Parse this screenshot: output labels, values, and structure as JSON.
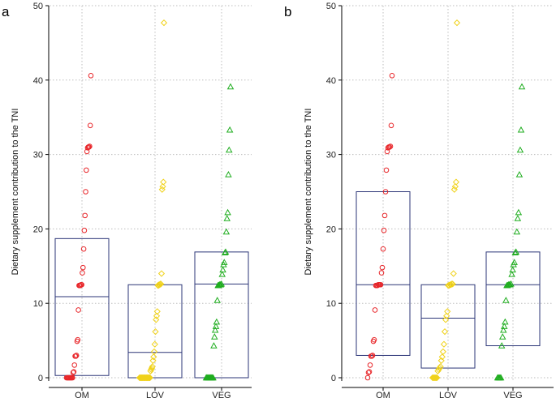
{
  "chart_data": [
    {
      "type": "scatter",
      "panel_label": "a",
      "ylabel": "Dietary supplement contribution to the TNI",
      "xlabel": "",
      "ylim": [
        0,
        50
      ],
      "yticks": [
        0,
        10,
        20,
        30,
        40,
        50
      ],
      "grid": true,
      "categories": [
        "OM",
        "LOV",
        "VEG"
      ],
      "series": [
        {
          "name": "OM",
          "marker": "circle",
          "color": "#e8262a",
          "values": [
            0,
            0,
            0,
            0,
            0,
            0,
            0,
            0,
            0,
            0,
            0.7,
            0.8,
            1.7,
            2.9,
            2.9,
            3.0,
            4.9,
            5.1,
            9.1,
            12.4,
            12.4,
            12.4,
            12.5,
            12.5,
            14.1,
            14.8,
            17.3,
            19.8,
            21.8,
            25.0,
            27.9,
            30.4,
            30.9,
            31.0,
            31.0,
            31.1,
            33.9,
            40.6
          ]
        },
        {
          "name": "LOV",
          "marker": "diamond",
          "color": "#f0d21a",
          "values": [
            0,
            0,
            0,
            0,
            0,
            0,
            0,
            0,
            0,
            0,
            0,
            0,
            0,
            0,
            0,
            0,
            0,
            0,
            0.9,
            1.1,
            1.3,
            1.5,
            2.3,
            2.8,
            3.5,
            4.5,
            6.2,
            7.8,
            8.3,
            8.9,
            12.4,
            12.4,
            12.5,
            12.5,
            12.6,
            12.6,
            14.0,
            25.3,
            25.7,
            26.3,
            47.7
          ]
        },
        {
          "name": "VEG",
          "marker": "triangle",
          "color": "#1fad1f",
          "values": [
            0,
            0,
            0,
            0,
            0,
            0,
            0,
            0,
            0,
            0,
            0,
            4.3,
            5.5,
            6.4,
            6.9,
            7.5,
            10.4,
            12.4,
            12.4,
            12.5,
            12.5,
            12.5,
            12.6,
            13.9,
            14.5,
            15.2,
            15.5,
            16.8,
            16.9,
            19.6,
            21.4,
            22.2,
            27.3,
            30.6,
            33.3,
            39.1
          ]
        }
      ],
      "boxes": [
        {
          "category": "OM",
          "low": 0.3,
          "mid": 10.9,
          "high": 18.7
        },
        {
          "category": "LOV",
          "low": 0.0,
          "mid": 3.4,
          "high": 12.5
        },
        {
          "category": "VEG",
          "low": 0.0,
          "mid": 12.6,
          "high": 16.9
        }
      ]
    },
    {
      "type": "scatter",
      "panel_label": "b",
      "ylabel": "Dietary supplement contribution to the TNI",
      "xlabel": "",
      "ylim": [
        0,
        50
      ],
      "yticks": [
        0,
        10,
        20,
        30,
        40,
        50
      ],
      "grid": true,
      "categories": [
        "OM",
        "LOV",
        "VEG"
      ],
      "series": [
        {
          "name": "OM",
          "marker": "circle",
          "color": "#e8262a",
          "values": [
            0,
            0.7,
            0.8,
            1.7,
            2.9,
            2.9,
            3.0,
            4.9,
            5.1,
            9.1,
            12.4,
            12.4,
            12.4,
            12.5,
            12.5,
            12.5,
            12.5,
            14.1,
            14.8,
            17.3,
            19.8,
            21.8,
            25.0,
            27.9,
            30.4,
            30.9,
            31.0,
            31.0,
            31.1,
            33.9,
            40.6
          ]
        },
        {
          "name": "LOV",
          "marker": "diamond",
          "color": "#f0d21a",
          "values": [
            0,
            0,
            0,
            0,
            0,
            0,
            0.9,
            1.1,
            1.3,
            1.5,
            2.3,
            2.8,
            3.5,
            4.5,
            6.2,
            7.8,
            8.3,
            8.9,
            12.4,
            12.4,
            12.5,
            12.5,
            12.6,
            12.6,
            14.0,
            25.3,
            25.7,
            26.3,
            47.7
          ]
        },
        {
          "name": "VEG",
          "marker": "triangle",
          "color": "#1fad1f",
          "values": [
            0,
            0,
            0,
            0,
            0,
            4.3,
            5.5,
            6.4,
            6.9,
            7.5,
            10.4,
            12.4,
            12.4,
            12.5,
            12.5,
            12.5,
            12.6,
            13.9,
            14.5,
            15.2,
            15.5,
            16.8,
            16.9,
            19.6,
            21.4,
            22.2,
            27.3,
            30.6,
            33.3,
            39.1
          ]
        }
      ],
      "boxes": [
        {
          "category": "OM",
          "low": 3.0,
          "mid": 12.5,
          "high": 25.0
        },
        {
          "category": "LOV",
          "low": 1.3,
          "mid": 8.0,
          "high": 12.5
        },
        {
          "category": "VEG",
          "low": 4.3,
          "mid": 12.5,
          "high": 16.9
        }
      ]
    }
  ]
}
